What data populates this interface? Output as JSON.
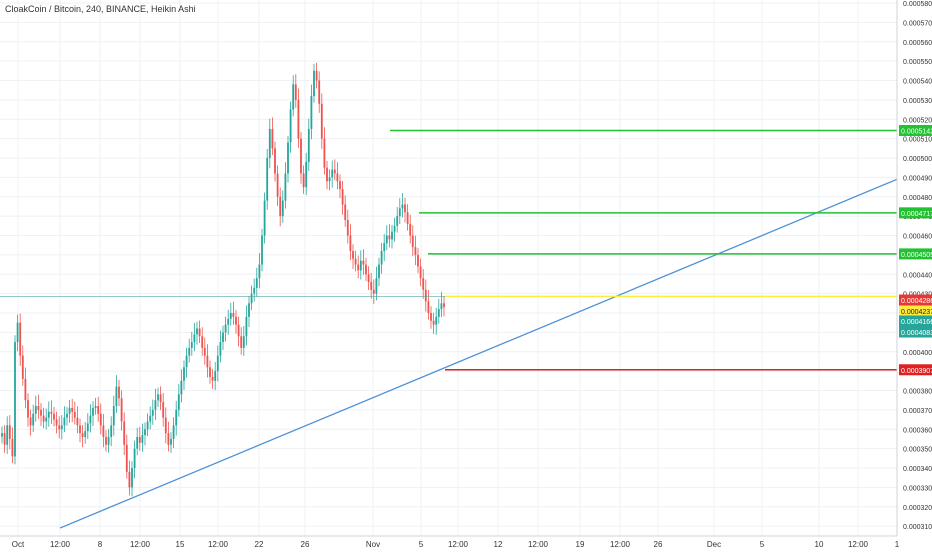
{
  "chart_data": {
    "type": "candlestick",
    "legend": "CloakCoin / Bitcoin, 240, BINANCE, Heikin Ashi",
    "x_labels": [
      "Oct",
      "12:00",
      "8",
      "12:00",
      "15",
      "12:00",
      "22",
      "26",
      "Nov",
      "5",
      "12:00",
      "12",
      "12:00",
      "19",
      "12:00",
      "26",
      "Dec",
      "5",
      "10",
      "12:00",
      "1"
    ],
    "y_ticks": [
      "0.0005800",
      "0.0005700",
      "0.0005600",
      "0.0005500",
      "0.0005400",
      "0.0005300",
      "0.0005200",
      "0.0005100",
      "0.0005000",
      "0.0004900",
      "0.0004800",
      "0.0004700",
      "0.0004600",
      "0.0004500",
      "0.0004400",
      "0.0004300",
      "0.0004200",
      "0.0004100",
      "0.0004000",
      "0.0003900",
      "0.0003800",
      "0.0003700",
      "0.0003600",
      "0.0003500",
      "0.0003400",
      "0.0003300",
      "0.0003200",
      "0.0003100"
    ],
    "y_range": [
      0.000308,
      0.00058
    ],
    "close_series": [
      0.000358,
      0.000352,
      0.000362,
      0.000355,
      0.000346,
      0.000405,
      0.000415,
      0.000398,
      0.000386,
      0.000375,
      0.000366,
      0.000362,
      0.000368,
      0.000372,
      0.00037,
      0.000367,
      0.000364,
      0.000366,
      0.000369,
      0.000368,
      0.000365,
      0.000362,
      0.00036,
      0.000362,
      0.000366,
      0.000368,
      0.000371,
      0.000369,
      0.000366,
      0.000362,
      0.000358,
      0.000356,
      0.000359,
      0.000363,
      0.000367,
      0.000371,
      0.000372,
      0.000368,
      0.000362,
      0.000356,
      0.000352,
      0.000356,
      0.000362,
      0.000372,
      0.000382,
      0.000376,
      0.000364,
      0.000352,
      0.000338,
      0.00033,
      0.00034,
      0.00035,
      0.000356,
      0.000353,
      0.000357,
      0.00036,
      0.000364,
      0.000367,
      0.00037,
      0.000375,
      0.000378,
      0.000374,
      0.000366,
      0.000358,
      0.000352,
      0.000355,
      0.000362,
      0.00037,
      0.000378,
      0.000385,
      0.000392,
      0.000398,
      0.000402,
      0.000405,
      0.000409,
      0.000412,
      0.000408,
      0.000402,
      0.000398,
      0.000392,
      0.000387,
      0.000385,
      0.00039,
      0.000398,
      0.000405,
      0.00041,
      0.000414,
      0.000417,
      0.00042,
      0.000418,
      0.000414,
      0.000408,
      0.000402,
      0.000408,
      0.000418,
      0.000425,
      0.00043,
      0.000433,
      0.000438,
      0.000445,
      0.00046,
      0.000478,
      0.0005,
      0.000515,
      0.000505,
      0.000492,
      0.00048,
      0.00047,
      0.000478,
      0.000492,
      0.000508,
      0.000525,
      0.000538,
      0.00053,
      0.00051,
      0.000492,
      0.000485,
      0.000498,
      0.000515,
      0.000532,
      0.000545,
      0.00054,
      0.000528,
      0.00051,
      0.000495,
      0.000488,
      0.00049,
      0.000494,
      0.000492,
      0.000488,
      0.000484,
      0.000476,
      0.000468,
      0.00046,
      0.000452,
      0.000448,
      0.000445,
      0.000442,
      0.000447,
      0.000445,
      0.00044,
      0.000436,
      0.000432,
      0.00043,
      0.000438,
      0.000445,
      0.000452,
      0.000456,
      0.00046,
      0.000458,
      0.000462,
      0.000465,
      0.00047,
      0.000474,
      0.000476,
      0.000472,
      0.000466,
      0.00046,
      0.000454,
      0.00045,
      0.000444,
      0.000438,
      0.000432,
      0.000426,
      0.00042,
      0.000416,
      0.000414,
      0.000418,
      0.000422,
      0.000425,
      0.000423
    ],
    "horizontal_levels": [
      {
        "price": 0.0005142,
        "label": "0.0005142",
        "color": "#22c232",
        "x_start": 390
      },
      {
        "price": 0.0004717,
        "label": "0.0004717",
        "color": "#22c232",
        "x_start": 419
      },
      {
        "price": 0.0004505,
        "label": "0.0004505",
        "color": "#22c232",
        "x_start": 428
      },
      {
        "price": 0.0004286,
        "label": "0.0004286",
        "color": "#ffeb3b",
        "x_start": 445
      },
      {
        "price": 0.0003907,
        "label": "0.0003907",
        "color": "#e02020",
        "x_start": 445
      }
    ],
    "price_badges": [
      {
        "price": 0.0004286,
        "label": "0.0004286",
        "bg": "#e53935",
        "fg": "#ffffff"
      },
      {
        "price": 0.0004237,
        "label": "0.0004237",
        "bg": "#ffeb3b",
        "fg": "#222222"
      },
      {
        "price": 0.0004166,
        "label": "0.0004166",
        "bg": "#26a69a",
        "fg": "#ffffff"
      },
      {
        "price": 0.0004083,
        "label": "0.0004083",
        "bg": "#26a69a",
        "fg": "#ffffff"
      }
    ],
    "trendline": {
      "color": "#4a90d9",
      "start": {
        "bar": 10,
        "price": 0.000309
      },
      "end": {
        "bar": 460,
        "price": 0.000489
      }
    },
    "colors": {
      "up": "#26a69a",
      "down": "#ef5350",
      "grid": "#eef1f5",
      "crosshair": "#5ba7a0"
    }
  }
}
